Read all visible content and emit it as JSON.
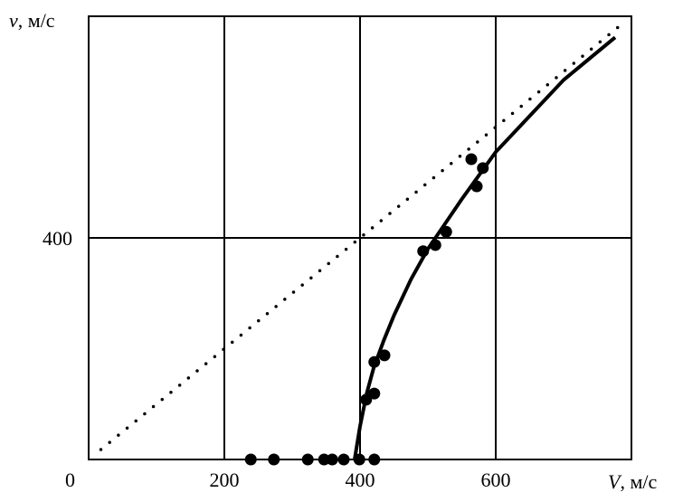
{
  "chart_data": {
    "type": "scatter",
    "title": "",
    "xlabel": {
      "symbol": "V",
      "unit": ", м/с"
    },
    "ylabel": {
      "symbol": "v",
      "unit": ", м/с"
    },
    "xlim": [
      0,
      800
    ],
    "ylim": [
      0,
      800
    ],
    "x_ticks": [
      {
        "value": 0,
        "label": "0"
      },
      {
        "value": 200,
        "label": "200"
      },
      {
        "value": 400,
        "label": "400"
      },
      {
        "value": 600,
        "label": "600"
      }
    ],
    "y_ticks": [
      {
        "value": 400,
        "label": "400"
      }
    ],
    "grid": true,
    "series": [
      {
        "type": "scatter",
        "marker": "filled-circle",
        "color": "#000000",
        "points": [
          [
            239,
            0
          ],
          [
            273,
            0
          ],
          [
            323,
            0
          ],
          [
            347,
            0
          ],
          [
            359,
            0
          ],
          [
            376,
            0
          ],
          [
            399,
            0
          ],
          [
            421,
            0
          ],
          [
            409,
            108
          ],
          [
            421,
            119
          ],
          [
            421,
            176
          ],
          [
            436,
            188
          ],
          [
            493,
            376
          ],
          [
            511,
            387
          ],
          [
            527,
            411
          ],
          [
            564,
            542
          ],
          [
            572,
            493
          ],
          [
            581,
            526
          ]
        ]
      },
      {
        "type": "line",
        "style": "solid",
        "color": "#000000",
        "points": [
          [
            392,
            0
          ],
          [
            400,
            60
          ],
          [
            410,
            120
          ],
          [
            420,
            165
          ],
          [
            435,
            215
          ],
          [
            450,
            260
          ],
          [
            475,
            325
          ],
          [
            500,
            380
          ],
          [
            525,
            425
          ],
          [
            550,
            470
          ],
          [
            600,
            555
          ],
          [
            650,
            620
          ],
          [
            700,
            685
          ],
          [
            776,
            762
          ]
        ]
      },
      {
        "type": "line",
        "style": "dotted",
        "color": "#000000",
        "points": [
          [
            18,
            18
          ],
          [
            790,
            790
          ]
        ]
      }
    ]
  }
}
